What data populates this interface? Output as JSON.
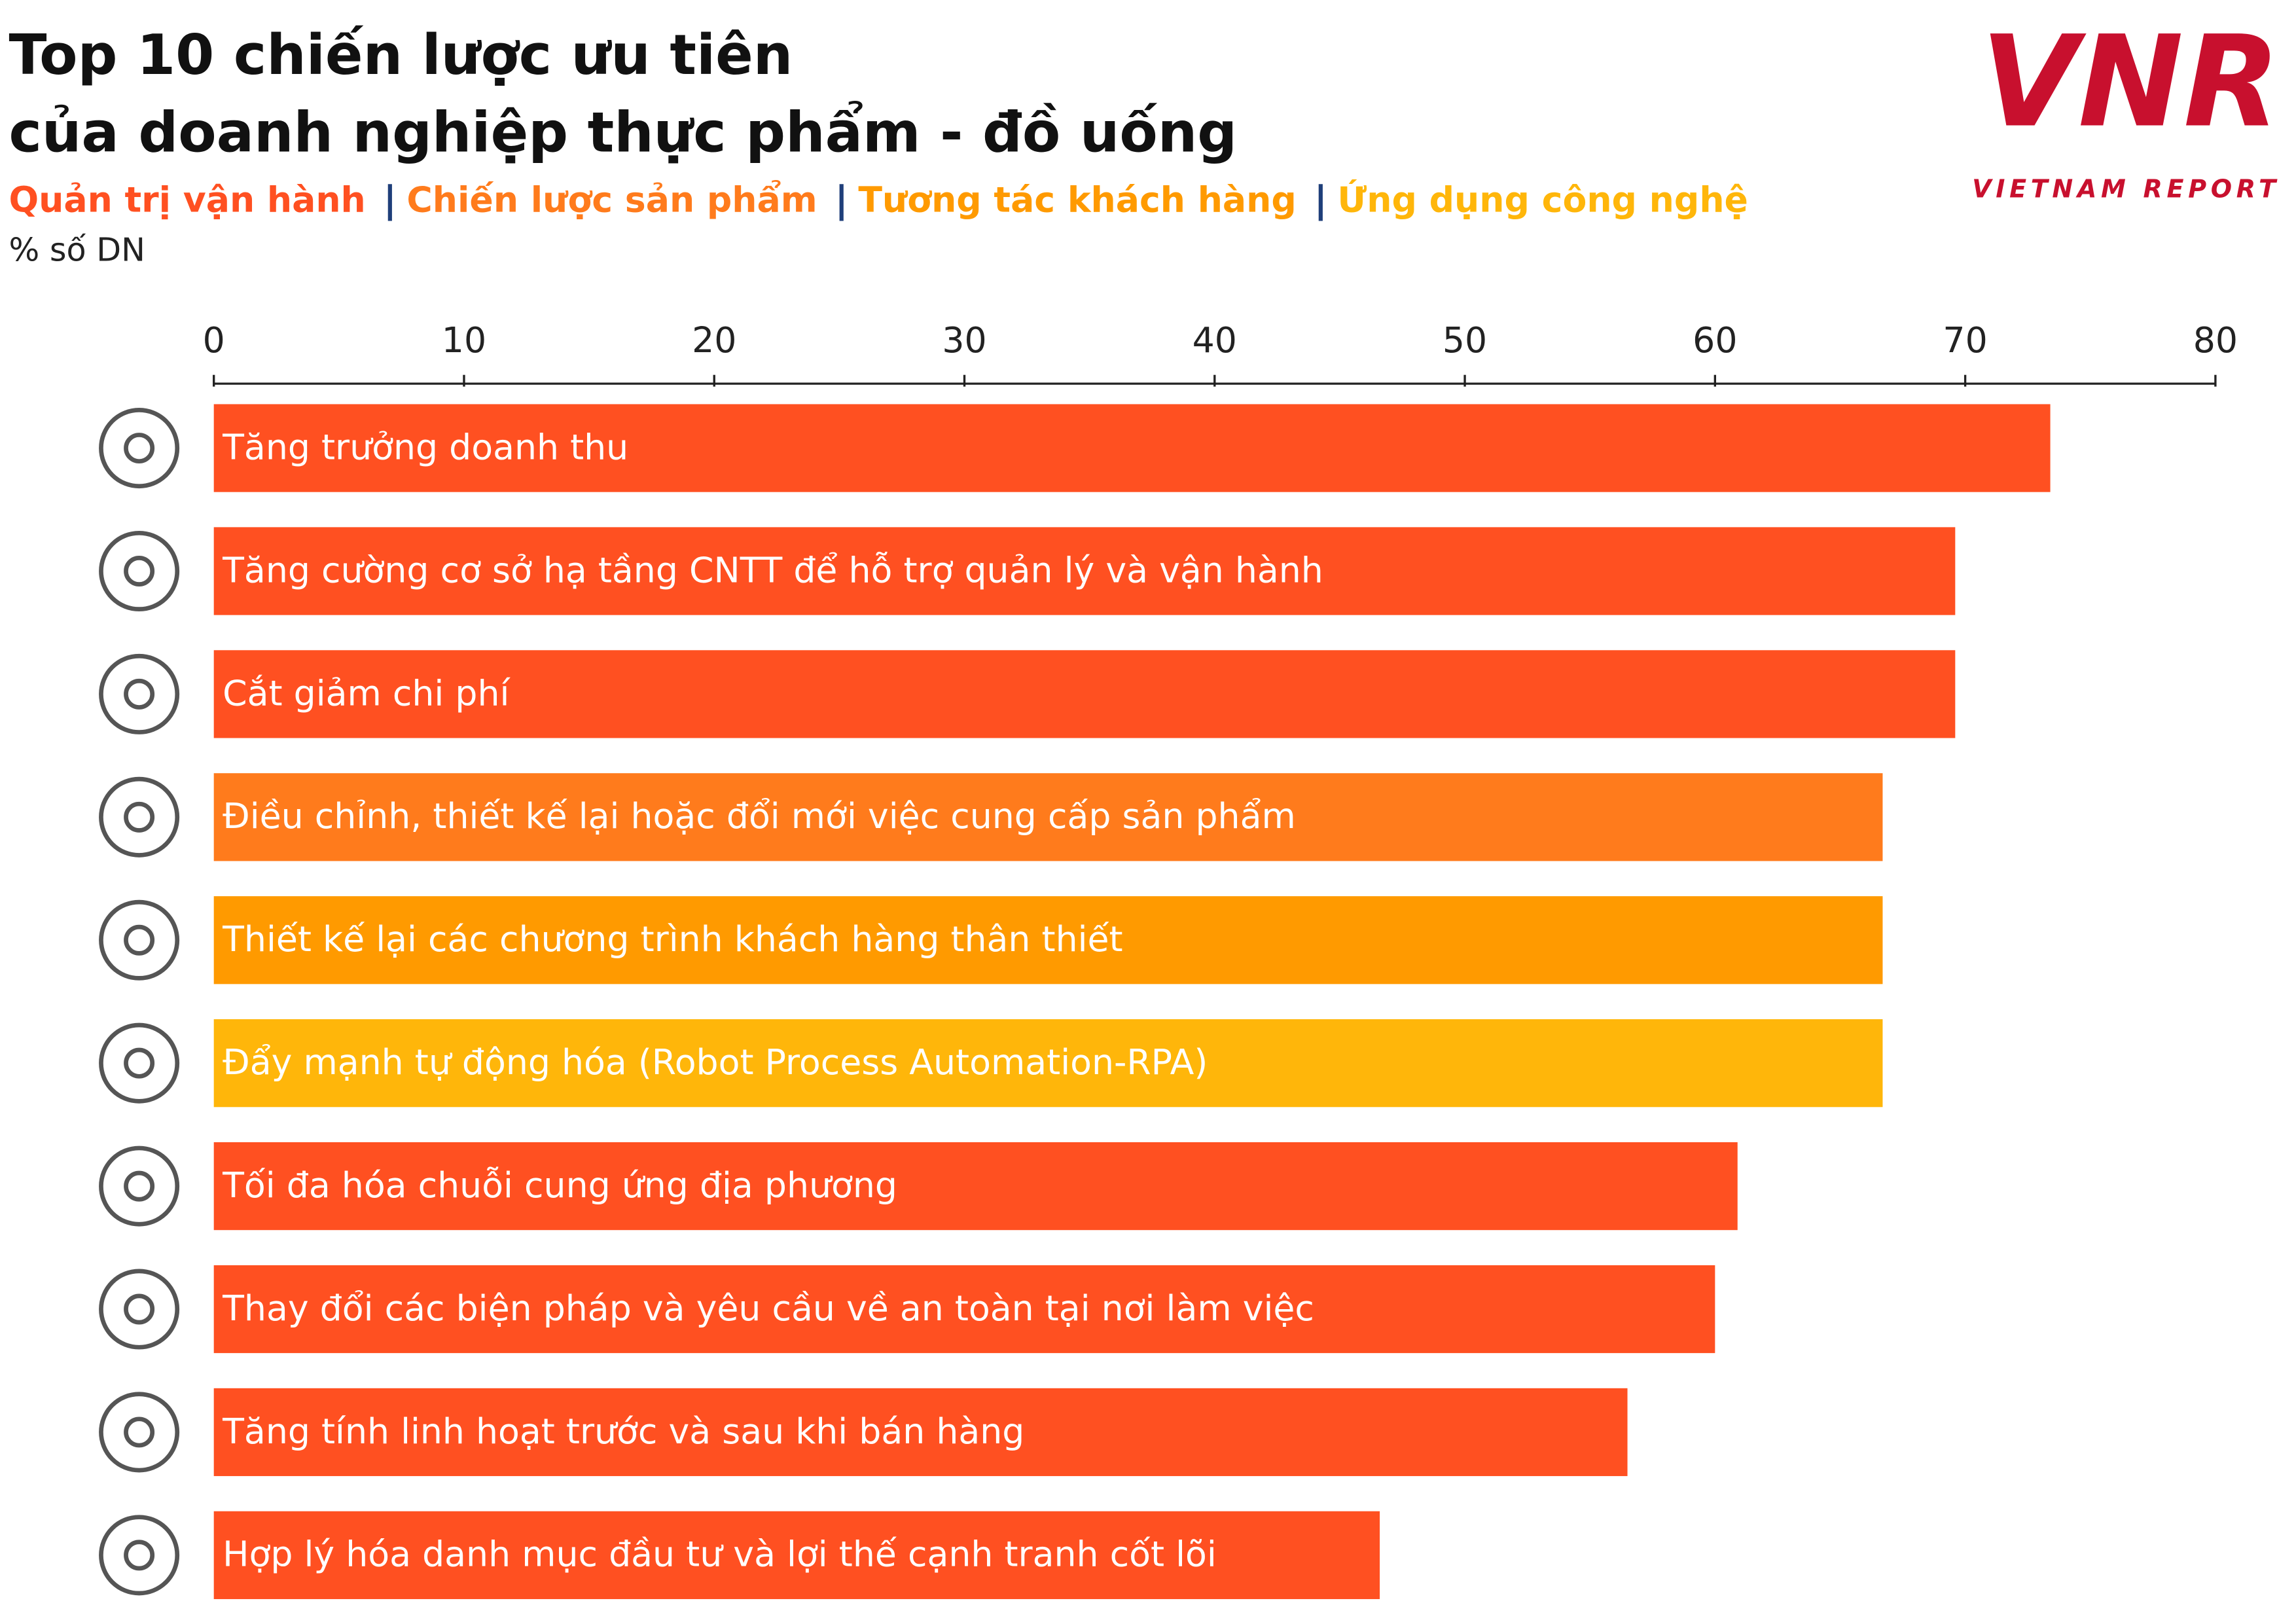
{
  "chart_data": {
    "type": "hbar",
    "title": [
      "Top 10 chiến lược ưu tiên",
      "của doanh nghiệp thực phẩm - đồ uống"
    ],
    "legend": [
      {
        "name": "Quản trị vận hành",
        "color": "#ff5021"
      },
      {
        "name": "Chiến lược sản phẩm",
        "color": "#ff7b1c"
      },
      {
        "name": "Tương tác khách hàng",
        "color": "#ff9a00"
      },
      {
        "name": "Ứng dụng công nghệ",
        "color": "#ffb60a"
      }
    ],
    "axis_label": "% số DN",
    "categories": [
      "Tăng trưởng doanh thu",
      "Tăng cường cơ sở hạ tầng CNTT để hỗ trợ quản lý và vận hành",
      "Cắt giảm chi phí",
      "Điều chỉnh, thiết kế lại hoặc đổi mới việc cung cấp sản phẩm",
      "Thiết kế lại các chương trình khách hàng thân thiết",
      "Đẩy mạnh tự động hóa (Robot Process Automation-RPA)",
      "Tối đa hóa chuỗi cung ứng địa phương",
      "Thay đổi các biện pháp và yêu cầu về an toàn tại nơi làm việc",
      "Tăng tính linh hoạt trước và sau khi bán hàng",
      "Hợp lý hóa danh mục đầu tư và lợi thế cạnh tranh cốt lõi"
    ],
    "values": [
      73.4,
      69.6,
      69.6,
      66.7,
      66.7,
      66.7,
      60.9,
      60.0,
      56.5,
      46.6
    ],
    "colors": [
      "#ff5021",
      "#ff5021",
      "#ff5021",
      "#ff7b1c",
      "#ff9a00",
      "#ffb60a",
      "#ff5021",
      "#ff5021",
      "#ff5021",
      "#ff5021"
    ],
    "xlim": [
      0,
      80
    ],
    "xticks": [
      0,
      10,
      20,
      30,
      40,
      50,
      60,
      70,
      80
    ],
    "grid": false,
    "logo": {
      "mark": "VNR",
      "text": "VIETNAM REPORT"
    }
  }
}
